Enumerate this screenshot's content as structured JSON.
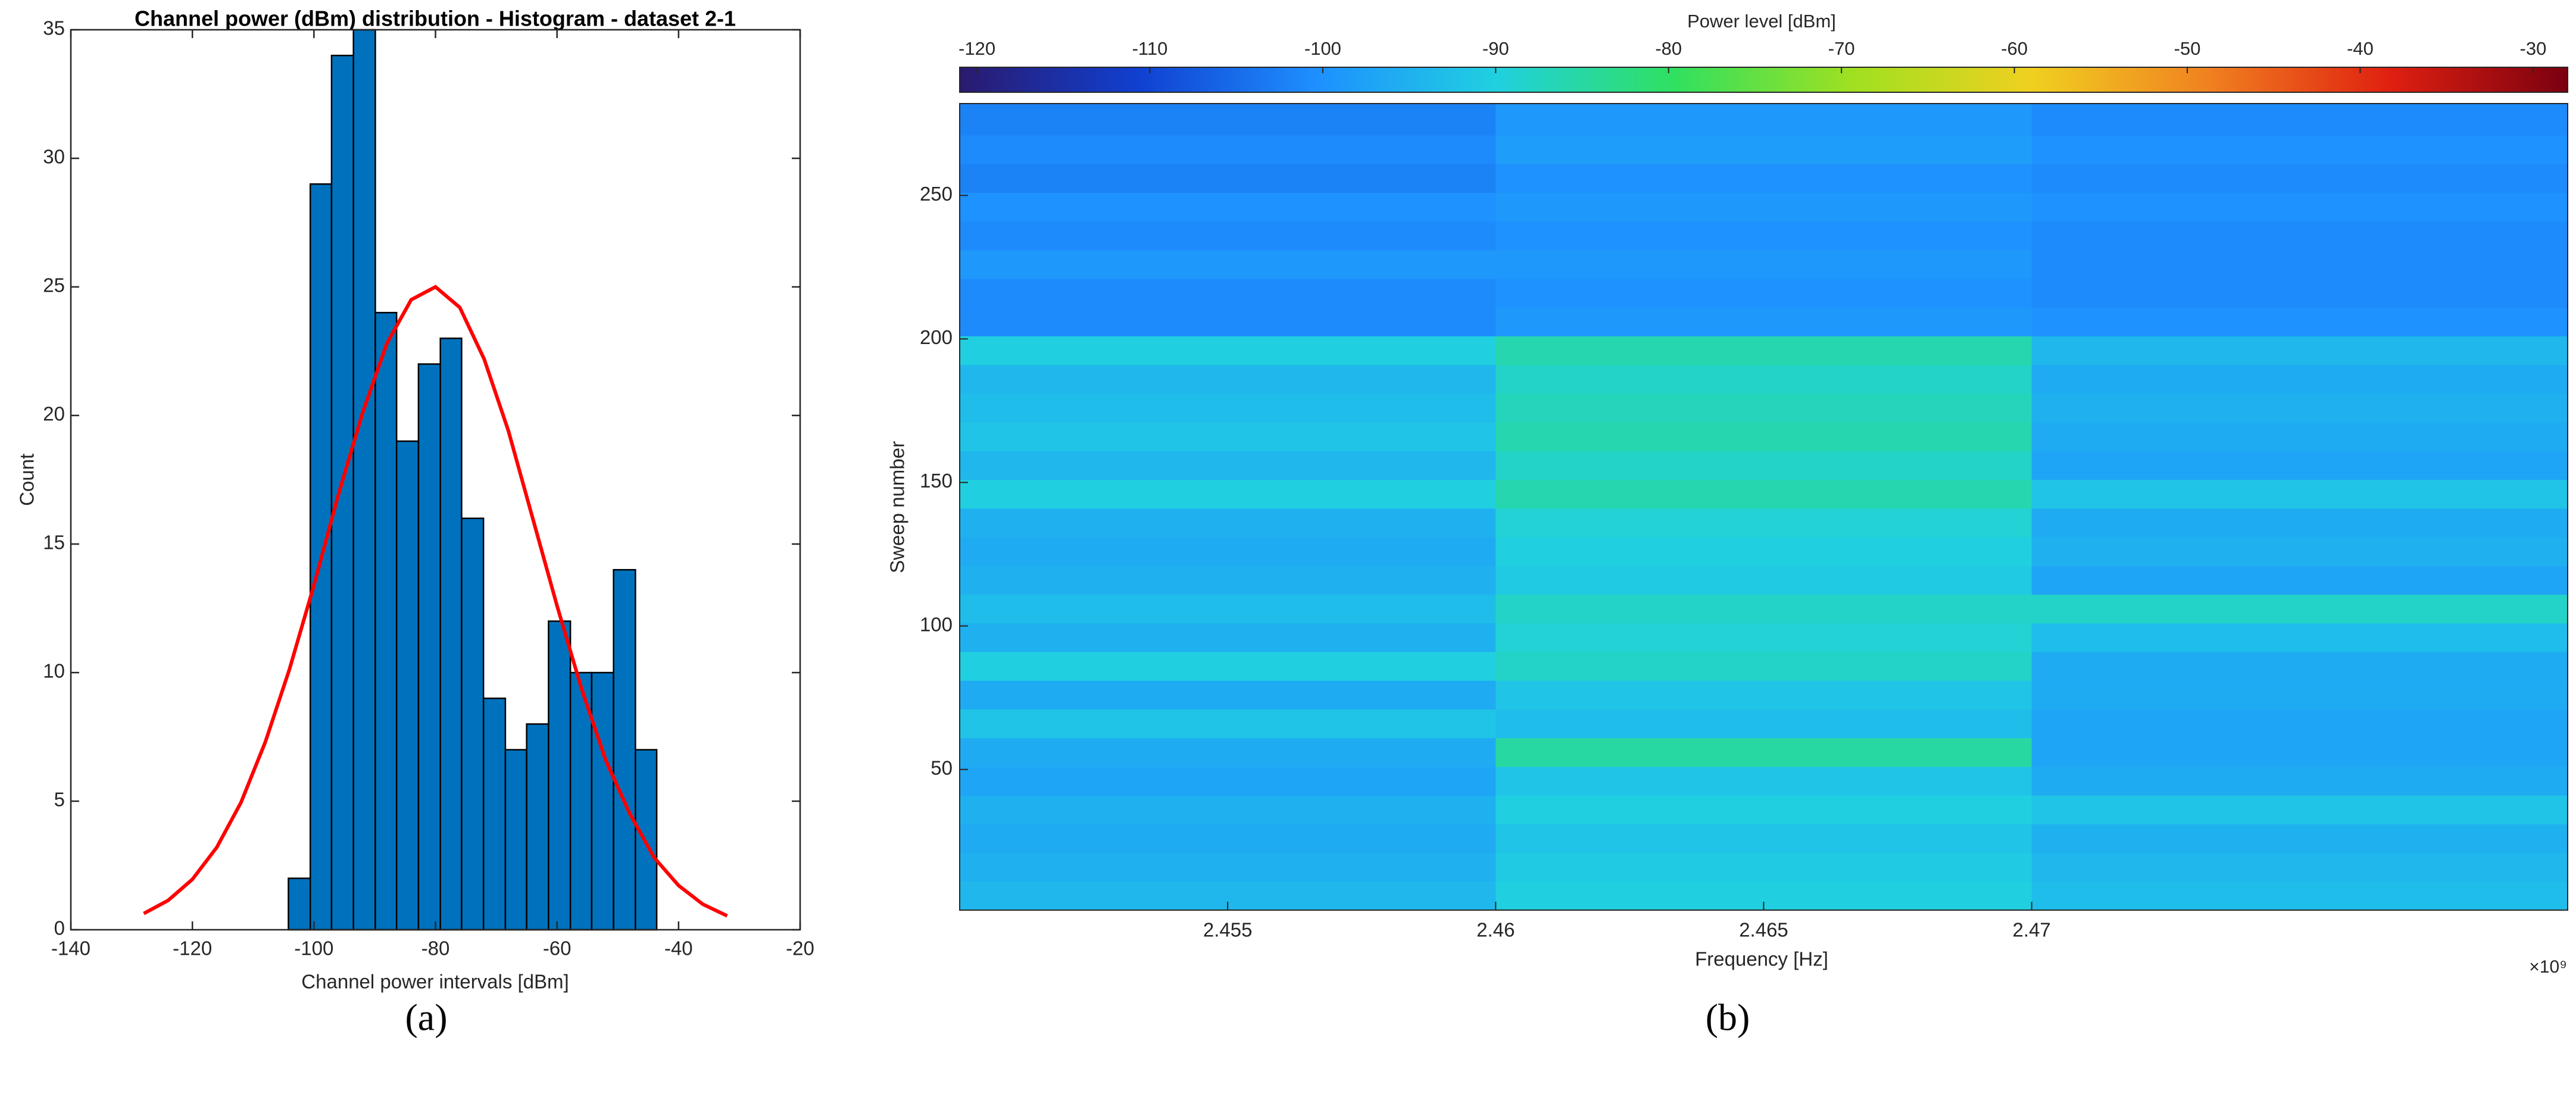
{
  "chart_data": [
    {
      "type": "histogram",
      "title": "Channel power (dBm) distribution - Histogram - dataset 2-1",
      "xlabel": "Channel power intervals [dBm]",
      "ylabel": "Count",
      "caption": "(a)",
      "bins": [
        -104.2,
        -100.6,
        -97.1,
        -93.5,
        -89.9,
        -86.4,
        -82.8,
        -79.2,
        -75.7,
        -72.1,
        -68.5,
        -65.0,
        -61.4,
        -57.8,
        -54.3,
        -50.7,
        -47.1,
        -43.6
      ],
      "values": [
        2,
        29,
        34,
        35,
        24,
        19,
        22,
        23,
        16,
        9,
        7,
        8,
        12,
        10,
        10,
        14,
        7
      ],
      "color": "#0072bd",
      "fit": {
        "color": "#ff0000",
        "x": [
          -128,
          -124,
          -120,
          -116,
          -112,
          -108,
          -104,
          -100,
          -96,
          -92,
          -88,
          -84,
          -80,
          -76,
          -72,
          -68,
          -64,
          -60,
          -56,
          -52,
          -48,
          -44,
          -40,
          -36,
          -32
        ],
        "values": [
          0.63,
          1.14,
          1.96,
          3.2,
          4.95,
          7.3,
          10.15,
          13.4,
          16.9,
          20.1,
          22.8,
          24.5,
          25.0,
          24.2,
          22.2,
          19.4,
          16.0,
          12.6,
          9.4,
          6.6,
          4.5,
          2.8,
          1.72,
          0.99,
          0.54
        ]
      },
      "xlim": [
        -140,
        -20
      ],
      "xticks": [
        -140,
        -120,
        -100,
        -80,
        -60,
        -40,
        -20
      ],
      "ylim": [
        0,
        35
      ],
      "yticks": [
        0,
        5,
        10,
        15,
        20,
        25,
        30,
        35
      ],
      "grid": false
    },
    {
      "type": "heatmap",
      "xlabel": "Frequency [Hz]",
      "ylabel": "Sweep number",
      "x_exponent_label": "×10⁹",
      "colorbar_label": "Power level [dBm]",
      "caption": "(b)",
      "x_bins": [
        2.45,
        2.46,
        2.47,
        2.48
      ],
      "y_bins": [
        1,
        11,
        21,
        31,
        41,
        51,
        61,
        71,
        81,
        91,
        101,
        111,
        121,
        131,
        141,
        151,
        161,
        171,
        181,
        191,
        201,
        211,
        221,
        231,
        241,
        251,
        261,
        271,
        282
      ],
      "z": [
        [
          -94,
          -90,
          -93
        ],
        [
          -95,
          -91,
          -94
        ],
        [
          -96,
          -92,
          -95
        ],
        [
          -95,
          -90,
          -92
        ],
        [
          -97,
          -92,
          -96
        ],
        [
          -96,
          -85,
          -97
        ],
        [
          -92,
          -93,
          -97
        ],
        [
          -96,
          -92,
          -96
        ],
        [
          -90,
          -88,
          -96
        ],
        [
          -95,
          -89,
          -93
        ],
        [
          -93,
          -88,
          -88
        ],
        [
          -95,
          -91,
          -97
        ],
        [
          -96,
          -90,
          -95
        ],
        [
          -95,
          -89,
          -96
        ],
        [
          -90,
          -86,
          -92
        ],
        [
          -94,
          -88,
          -97
        ],
        [
          -92,
          -86,
          -96
        ],
        [
          -93,
          -87,
          -95
        ],
        [
          -94,
          -88,
          -96
        ],
        [
          -90,
          -86,
          -94
        ],
        [
          -101,
          -99,
          -100
        ],
        [
          -101,
          -100,
          -101
        ],
        [
          -99,
          -99,
          -101
        ],
        [
          -101,
          -100,
          -101
        ],
        [
          -100,
          -99,
          -100
        ],
        [
          -102,
          -100,
          -101
        ],
        [
          -101,
          -98,
          -100
        ],
        [
          -102,
          -99,
          -101
        ]
      ],
      "colormap": [
        "#2a1a6e",
        "#1040d0",
        "#1e90ff",
        "#20d0e0",
        "#30e060",
        "#a0e020",
        "#f0d020",
        "#f08020",
        "#e02010",
        "#7a0010"
      ],
      "clim": [
        -121,
        -28
      ],
      "cticks": [
        -120,
        -110,
        -100,
        -90,
        -80,
        -70,
        -60,
        -50,
        -40,
        -30
      ],
      "xlim": [
        2.45,
        2.48
      ],
      "xticks": [
        2.455,
        2.46,
        2.465,
        2.47
      ],
      "ylim": [
        1,
        282
      ],
      "yticks": [
        50,
        100,
        150,
        200,
        250
      ]
    }
  ]
}
